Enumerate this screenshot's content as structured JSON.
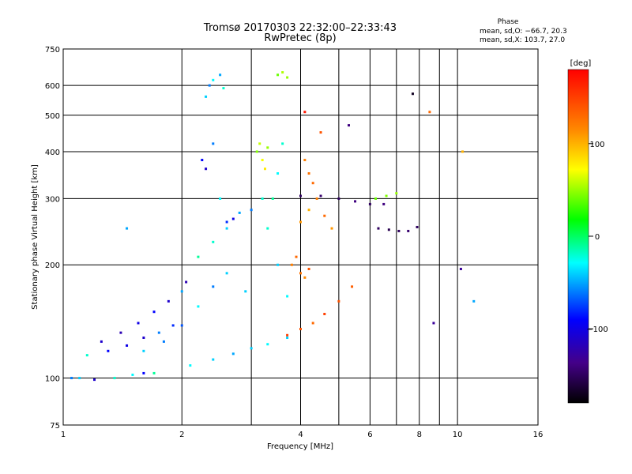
{
  "chart_data": {
    "type": "scatter",
    "title": "Tromsø 20170303 22:32:00–22:33:43",
    "subtitle": "RwPretec (8p)",
    "xlabel": "Frequency [MHz]",
    "ylabel": "Stationary phase Virtual Height [km]",
    "x_scale": "log",
    "y_scale": "log",
    "xlim": [
      1,
      16
    ],
    "ylim": [
      75,
      750
    ],
    "x_ticks": [
      1,
      2,
      4,
      6,
      8,
      10,
      16
    ],
    "x_tick_labels": [
      "1",
      "2",
      "4",
      "6",
      "8",
      "10",
      "16"
    ],
    "x_minor_ticks": [
      3,
      5,
      7,
      9
    ],
    "y_ticks": [
      75,
      100,
      200,
      300,
      400,
      500,
      600,
      750
    ],
    "y_tick_labels": [
      "75",
      "100",
      "200",
      "300",
      "400",
      "500",
      "600",
      "750"
    ],
    "grid": true,
    "phase_info": {
      "heading": "Phase",
      "line_o": "mean, sd,O: −66.7, 20.3",
      "line_x": "mean, sd,X: 103.7, 27.0"
    },
    "colorbar": {
      "label": "[deg]",
      "ticks": [
        100,
        0,
        -100
      ],
      "tick_labels": [
        "100",
        "0",
        "−100"
      ],
      "range": [
        -180,
        180
      ]
    },
    "series": [
      {
        "values": [
          [
            1.05,
            100,
            -60
          ],
          [
            1.1,
            100,
            -40
          ],
          [
            1.2,
            99,
            -110
          ],
          [
            1.35,
            100,
            -20
          ],
          [
            1.5,
            102,
            -30
          ],
          [
            1.6,
            103,
            -90
          ],
          [
            1.7,
            103,
            -10
          ]
        ]
      },
      {
        "values": [
          [
            1.15,
            115,
            -20
          ],
          [
            1.25,
            125,
            -110
          ],
          [
            1.4,
            132,
            -120
          ],
          [
            1.55,
            140,
            -100
          ],
          [
            1.7,
            150,
            -90
          ],
          [
            1.85,
            160,
            -110
          ],
          [
            2.0,
            170,
            -50
          ],
          [
            2.05,
            180,
            -120
          ]
        ]
      },
      {
        "values": [
          [
            1.3,
            118,
            -90
          ],
          [
            1.45,
            122,
            -100
          ],
          [
            1.6,
            128,
            -110
          ],
          [
            1.75,
            132,
            -60
          ],
          [
            1.9,
            138,
            -80
          ]
        ]
      },
      {
        "values": [
          [
            1.6,
            118,
            -40
          ],
          [
            1.8,
            125,
            -60
          ],
          [
            2.0,
            138,
            -70
          ],
          [
            2.2,
            155,
            -30
          ],
          [
            2.4,
            175,
            -60
          ],
          [
            2.6,
            190,
            -40
          ]
        ]
      },
      {
        "values": [
          [
            2.1,
            108,
            -30
          ],
          [
            2.4,
            112,
            -40
          ],
          [
            2.7,
            116,
            -50
          ],
          [
            3.0,
            120,
            -40
          ],
          [
            3.3,
            123,
            -30
          ],
          [
            3.7,
            128,
            -40
          ]
        ]
      },
      {
        "values": [
          [
            2.2,
            210,
            -10
          ],
          [
            2.4,
            230,
            -20
          ],
          [
            2.6,
            250,
            -40
          ],
          [
            2.8,
            275,
            -50
          ],
          [
            3.0,
            280,
            -60
          ],
          [
            3.2,
            300,
            -20
          ]
        ]
      },
      {
        "values": [
          [
            2.25,
            380,
            -90
          ],
          [
            2.3,
            360,
            -110
          ],
          [
            2.4,
            420,
            -60
          ],
          [
            2.5,
            300,
            -30
          ],
          [
            2.6,
            260,
            -80
          ],
          [
            2.7,
            265,
            -100
          ]
        ]
      },
      {
        "values": [
          [
            2.3,
            560,
            -40
          ],
          [
            2.35,
            600,
            -60
          ],
          [
            2.4,
            620,
            -30
          ],
          [
            2.5,
            640,
            -50
          ],
          [
            2.55,
            590,
            -20
          ]
        ]
      },
      {
        "values": [
          [
            3.1,
            400,
            45
          ],
          [
            3.15,
            420,
            60
          ],
          [
            3.2,
            380,
            70
          ],
          [
            3.25,
            360,
            80
          ],
          [
            3.3,
            410,
            50
          ]
        ]
      },
      {
        "values": [
          [
            3.5,
            640,
            40
          ],
          [
            3.6,
            650,
            55
          ],
          [
            3.7,
            630,
            50
          ]
        ]
      },
      {
        "values": [
          [
            3.3,
            250,
            -20
          ],
          [
            3.4,
            300,
            -10
          ],
          [
            3.5,
            350,
            -30
          ],
          [
            3.6,
            420,
            -20
          ],
          [
            3.5,
            200,
            -40
          ]
        ]
      },
      {
        "values": [
          [
            3.8,
            200,
            120
          ],
          [
            3.9,
            210,
            130
          ],
          [
            4.0,
            190,
            125
          ],
          [
            4.1,
            185,
            115
          ],
          [
            4.2,
            195,
            140
          ]
        ]
      },
      {
        "values": [
          [
            3.7,
            130,
            150
          ],
          [
            4.0,
            135,
            140
          ],
          [
            4.3,
            140,
            130
          ],
          [
            4.6,
            148,
            150
          ],
          [
            5.0,
            160,
            140
          ],
          [
            5.4,
            175,
            135
          ]
        ]
      },
      {
        "values": [
          [
            4.0,
            260,
            110
          ],
          [
            4.2,
            280,
            100
          ],
          [
            4.4,
            300,
            120
          ],
          [
            4.6,
            270,
            130
          ],
          [
            4.8,
            250,
            110
          ]
        ]
      },
      {
        "values": [
          [
            4.1,
            380,
            120
          ],
          [
            4.2,
            350,
            125
          ],
          [
            4.3,
            330,
            130
          ]
        ]
      },
      {
        "values": [
          [
            4.0,
            305,
            -150
          ],
          [
            4.5,
            305,
            -145
          ],
          [
            5.0,
            300,
            -150
          ],
          [
            5.5,
            295,
            -140
          ],
          [
            6.0,
            290,
            -150
          ],
          [
            6.5,
            290,
            -140
          ]
        ]
      },
      {
        "values": [
          [
            6.3,
            250,
            -150
          ],
          [
            6.7,
            248,
            -155
          ],
          [
            7.1,
            246,
            -150
          ],
          [
            7.5,
            246,
            -145
          ],
          [
            7.9,
            252,
            -150
          ]
        ]
      },
      {
        "values": [
          [
            6.2,
            300,
            40
          ],
          [
            6.6,
            305,
            45
          ],
          [
            7.0,
            310,
            50
          ]
        ]
      },
      {
        "values": [
          [
            5.3,
            470,
            -140
          ],
          [
            4.5,
            450,
            140
          ],
          [
            4.1,
            510,
            170
          ]
        ]
      },
      {
        "values": [
          [
            1.45,
            250,
            -50
          ],
          [
            2.9,
            170,
            -40
          ],
          [
            3.7,
            165,
            -30
          ],
          [
            7.7,
            570,
            -170
          ],
          [
            10.2,
            195,
            -130
          ],
          [
            11.0,
            160,
            -50
          ],
          [
            8.7,
            140,
            -130
          ],
          [
            8.5,
            510,
            130
          ],
          [
            10.3,
            400,
            100
          ]
        ]
      }
    ]
  }
}
